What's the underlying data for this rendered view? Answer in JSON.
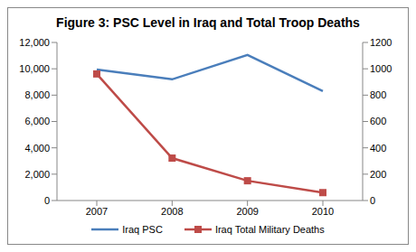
{
  "chart_data": {
    "type": "line",
    "title": "Figure 3: PSC Level in Iraq and Total Troop Deaths",
    "categories": [
      "2007",
      "2008",
      "2009",
      "2010"
    ],
    "series": [
      {
        "name": "Iraq PSC",
        "color": "#4a7ebb",
        "values": [
          9950,
          9200,
          11050,
          8300
        ],
        "marker": "none",
        "line_style": "solid"
      },
      {
        "name": "Iraq Total Military Deaths",
        "color": "#be4b48",
        "values": [
          961,
          322,
          150,
          60
        ],
        "marker": "square",
        "line_style": "solid",
        "axis": "y2"
      }
    ],
    "ylim": [
      0,
      12000
    ],
    "yticks": [
      0,
      {
        "value": 2000,
        "label": "2,000"
      },
      {
        "value": 4000,
        "label": "4,000"
      },
      {
        "value": 6000,
        "label": "6,000"
      },
      {
        "value": 8000,
        "label": "8,000"
      },
      {
        "value": 10000,
        "label": "10,000"
      },
      {
        "value": 12000,
        "label": "12,000"
      }
    ],
    "y2lim": [
      0,
      1200
    ],
    "y2ticks": [
      0,
      200,
      400,
      600,
      800,
      1000,
      1200
    ],
    "grid": false,
    "legend": "bottom"
  }
}
